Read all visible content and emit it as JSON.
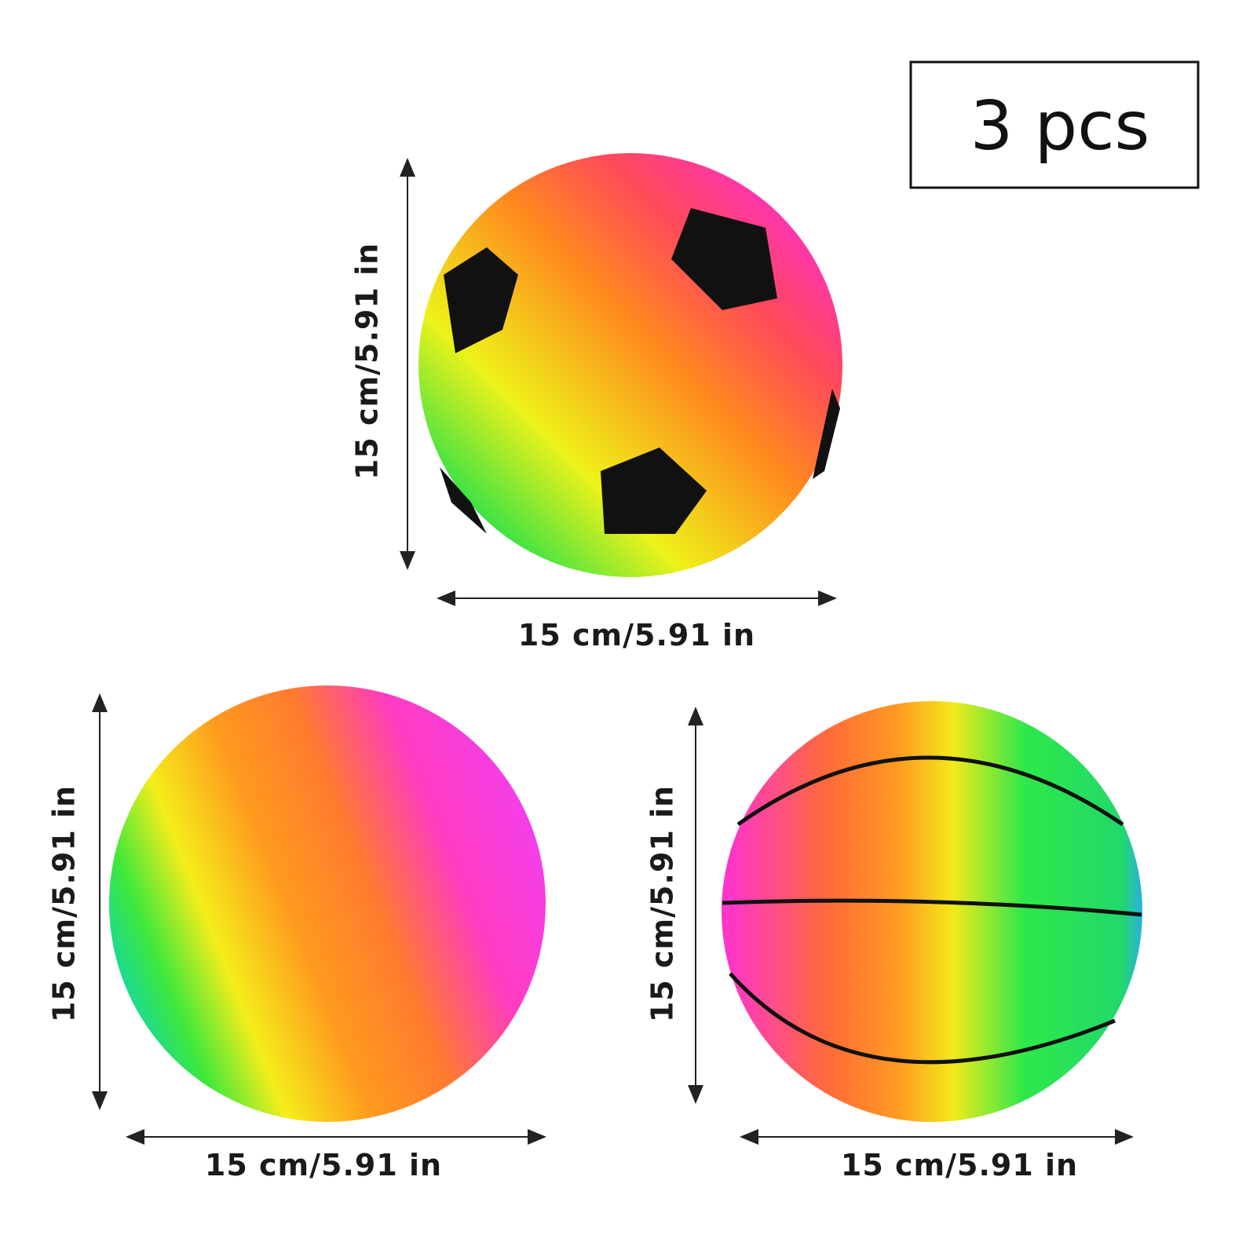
{
  "badge": {
    "text": "3 pcs"
  },
  "balls": [
    {
      "height_label": "15 cm/5.91 in",
      "width_label": "15 cm/5.91 in"
    },
    {
      "height_label": "15 cm/5.91 in",
      "width_label": "15 cm/5.91 in"
    },
    {
      "height_label": "15 cm/5.91 in",
      "width_label": "15 cm/5.91 in"
    }
  ]
}
